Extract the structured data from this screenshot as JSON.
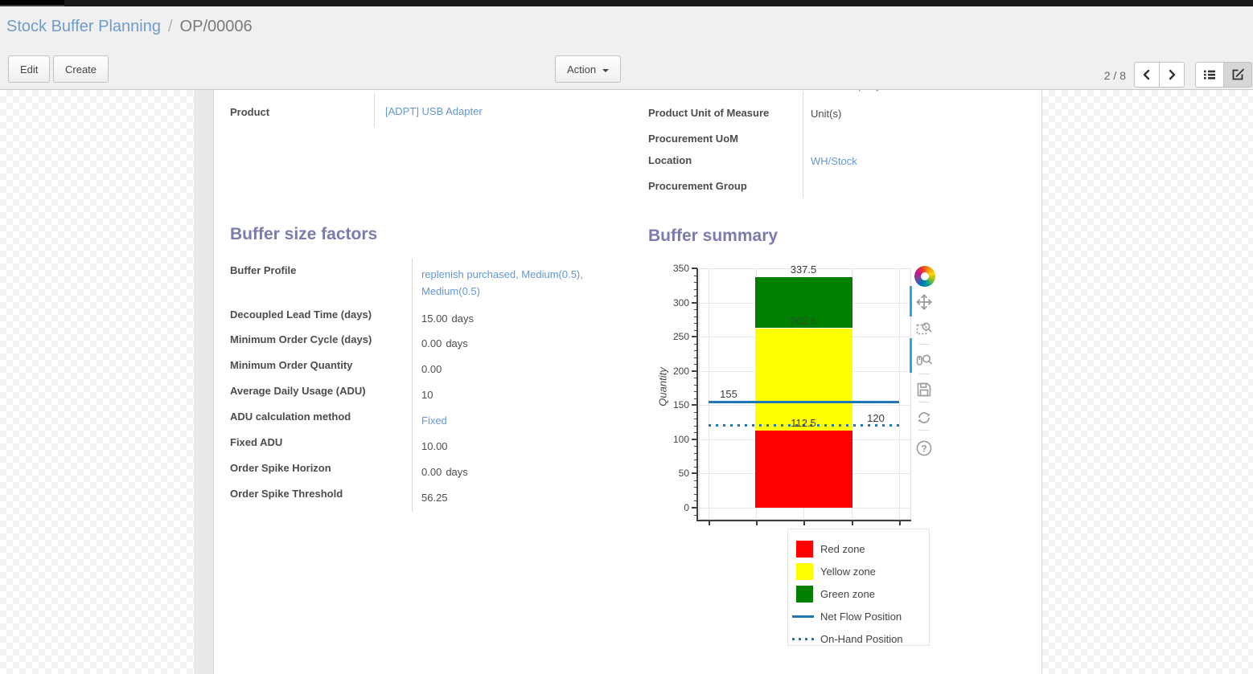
{
  "breadcrumb": {
    "parent": "Stock Buffer Planning",
    "separator": "/",
    "current": "OP/00006"
  },
  "control_panel": {
    "edit_label": "Edit",
    "create_label": "Create",
    "action_label": "Action",
    "pager": "2 / 8",
    "icons": [
      "chevron-left-icon",
      "chevron-right-icon",
      "list-view-icon",
      "form-view-icon"
    ],
    "active_view": "form"
  },
  "form": {
    "product": {
      "label": "Product",
      "value": "[ADPT] USB Adapter",
      "link": true
    },
    "right_column": {
      "clipped_value": "Main Company",
      "fields": [
        {
          "label": "Product Unit of Measure",
          "value": "Unit(s)",
          "link": false
        },
        {
          "label": "Procurement UoM",
          "value": "",
          "link": false
        },
        {
          "label": "Location",
          "value": "WH/Stock",
          "link": true
        },
        {
          "label": "Procurement Group",
          "value": "",
          "link": false
        }
      ]
    },
    "buffer_size_factors": {
      "title": "Buffer size factors",
      "fields": [
        {
          "label": "Buffer Profile",
          "value": "replenish purchased, Medium(0.5), Medium(0.5)",
          "link": true
        },
        {
          "label": "Decoupled Lead Time (days)",
          "value": "15.00",
          "unit": "days"
        },
        {
          "label": "Minimum Order Cycle (days)",
          "value": "0.00",
          "unit": "days"
        },
        {
          "label": "Minimum Order Quantity",
          "value": "0.00"
        },
        {
          "label": "Average Daily Usage (ADU)",
          "value": "10"
        },
        {
          "label": "ADU calculation method",
          "value": "Fixed",
          "link": true
        },
        {
          "label": "Fixed ADU",
          "value": "10.00"
        },
        {
          "label": "Order Spike Horizon",
          "value": "0.00",
          "unit": "days"
        },
        {
          "label": "Order Spike Threshold",
          "value": "56.25"
        }
      ]
    },
    "buffer_summary": {
      "title": "Buffer summary"
    }
  },
  "chart_data": {
    "type": "bar",
    "title": "Buffer summary",
    "ylabel": "Quantity",
    "ylim": [
      0,
      350
    ],
    "y_ticks": [
      0,
      50,
      100,
      150,
      200,
      250,
      300,
      350
    ],
    "grid": true,
    "categories": [
      ""
    ],
    "series": [
      {
        "name": "Red zone",
        "values": [
          112.5
        ],
        "color": "#ff0000"
      },
      {
        "name": "Yellow zone",
        "values": [
          150
        ],
        "color": "#ffff00"
      },
      {
        "name": "Green zone",
        "values": [
          75
        ],
        "color": "#008000"
      }
    ],
    "stack_boundaries": [
      112.5,
      262.5,
      337.5
    ],
    "hlines": [
      {
        "name": "Net Flow Position",
        "value": 155,
        "style": "solid",
        "color": "#1f77b4",
        "label": "155",
        "label_side": "left"
      },
      {
        "name": "On-Hand Position",
        "value": 120,
        "style": "dotted",
        "color": "#1f77b4",
        "label": "120",
        "label_side": "right"
      }
    ],
    "bar_labels": [
      {
        "text": "337.5",
        "value": 337.5,
        "muted": false
      },
      {
        "text": "262.5",
        "value": 262.5,
        "muted": true
      },
      {
        "text": "112.5",
        "value": 112.5,
        "muted": false
      }
    ],
    "legend_position": "below-right",
    "legend": [
      {
        "label": "Red zone",
        "swatch": "square",
        "color": "#ff0000"
      },
      {
        "label": "Yellow zone",
        "swatch": "square",
        "color": "#ffff00"
      },
      {
        "label": "Green zone",
        "swatch": "square",
        "color": "#008000"
      },
      {
        "label": "Net Flow Position",
        "swatch": "line-solid",
        "color": "#1f77b4"
      },
      {
        "label": "On-Hand Position",
        "swatch": "line-dotted",
        "color": "#1f77b4"
      }
    ],
    "toolbar_icons": [
      "bokeh-logo",
      "pan-icon",
      "box-zoom-icon",
      "wheel-zoom-icon",
      "save-icon",
      "reset-icon",
      "help-icon"
    ],
    "active_tools": [
      "pan-icon",
      "wheel-zoom-icon"
    ]
  },
  "colors": {
    "accent_purple": "#7c7bad",
    "link_blue": "#6398d2",
    "bar_red": "#ff0000",
    "bar_yellow": "#ffff00",
    "bar_green": "#008000",
    "line_blue": "#1f77b4",
    "topbar": "#1a1a1a"
  }
}
